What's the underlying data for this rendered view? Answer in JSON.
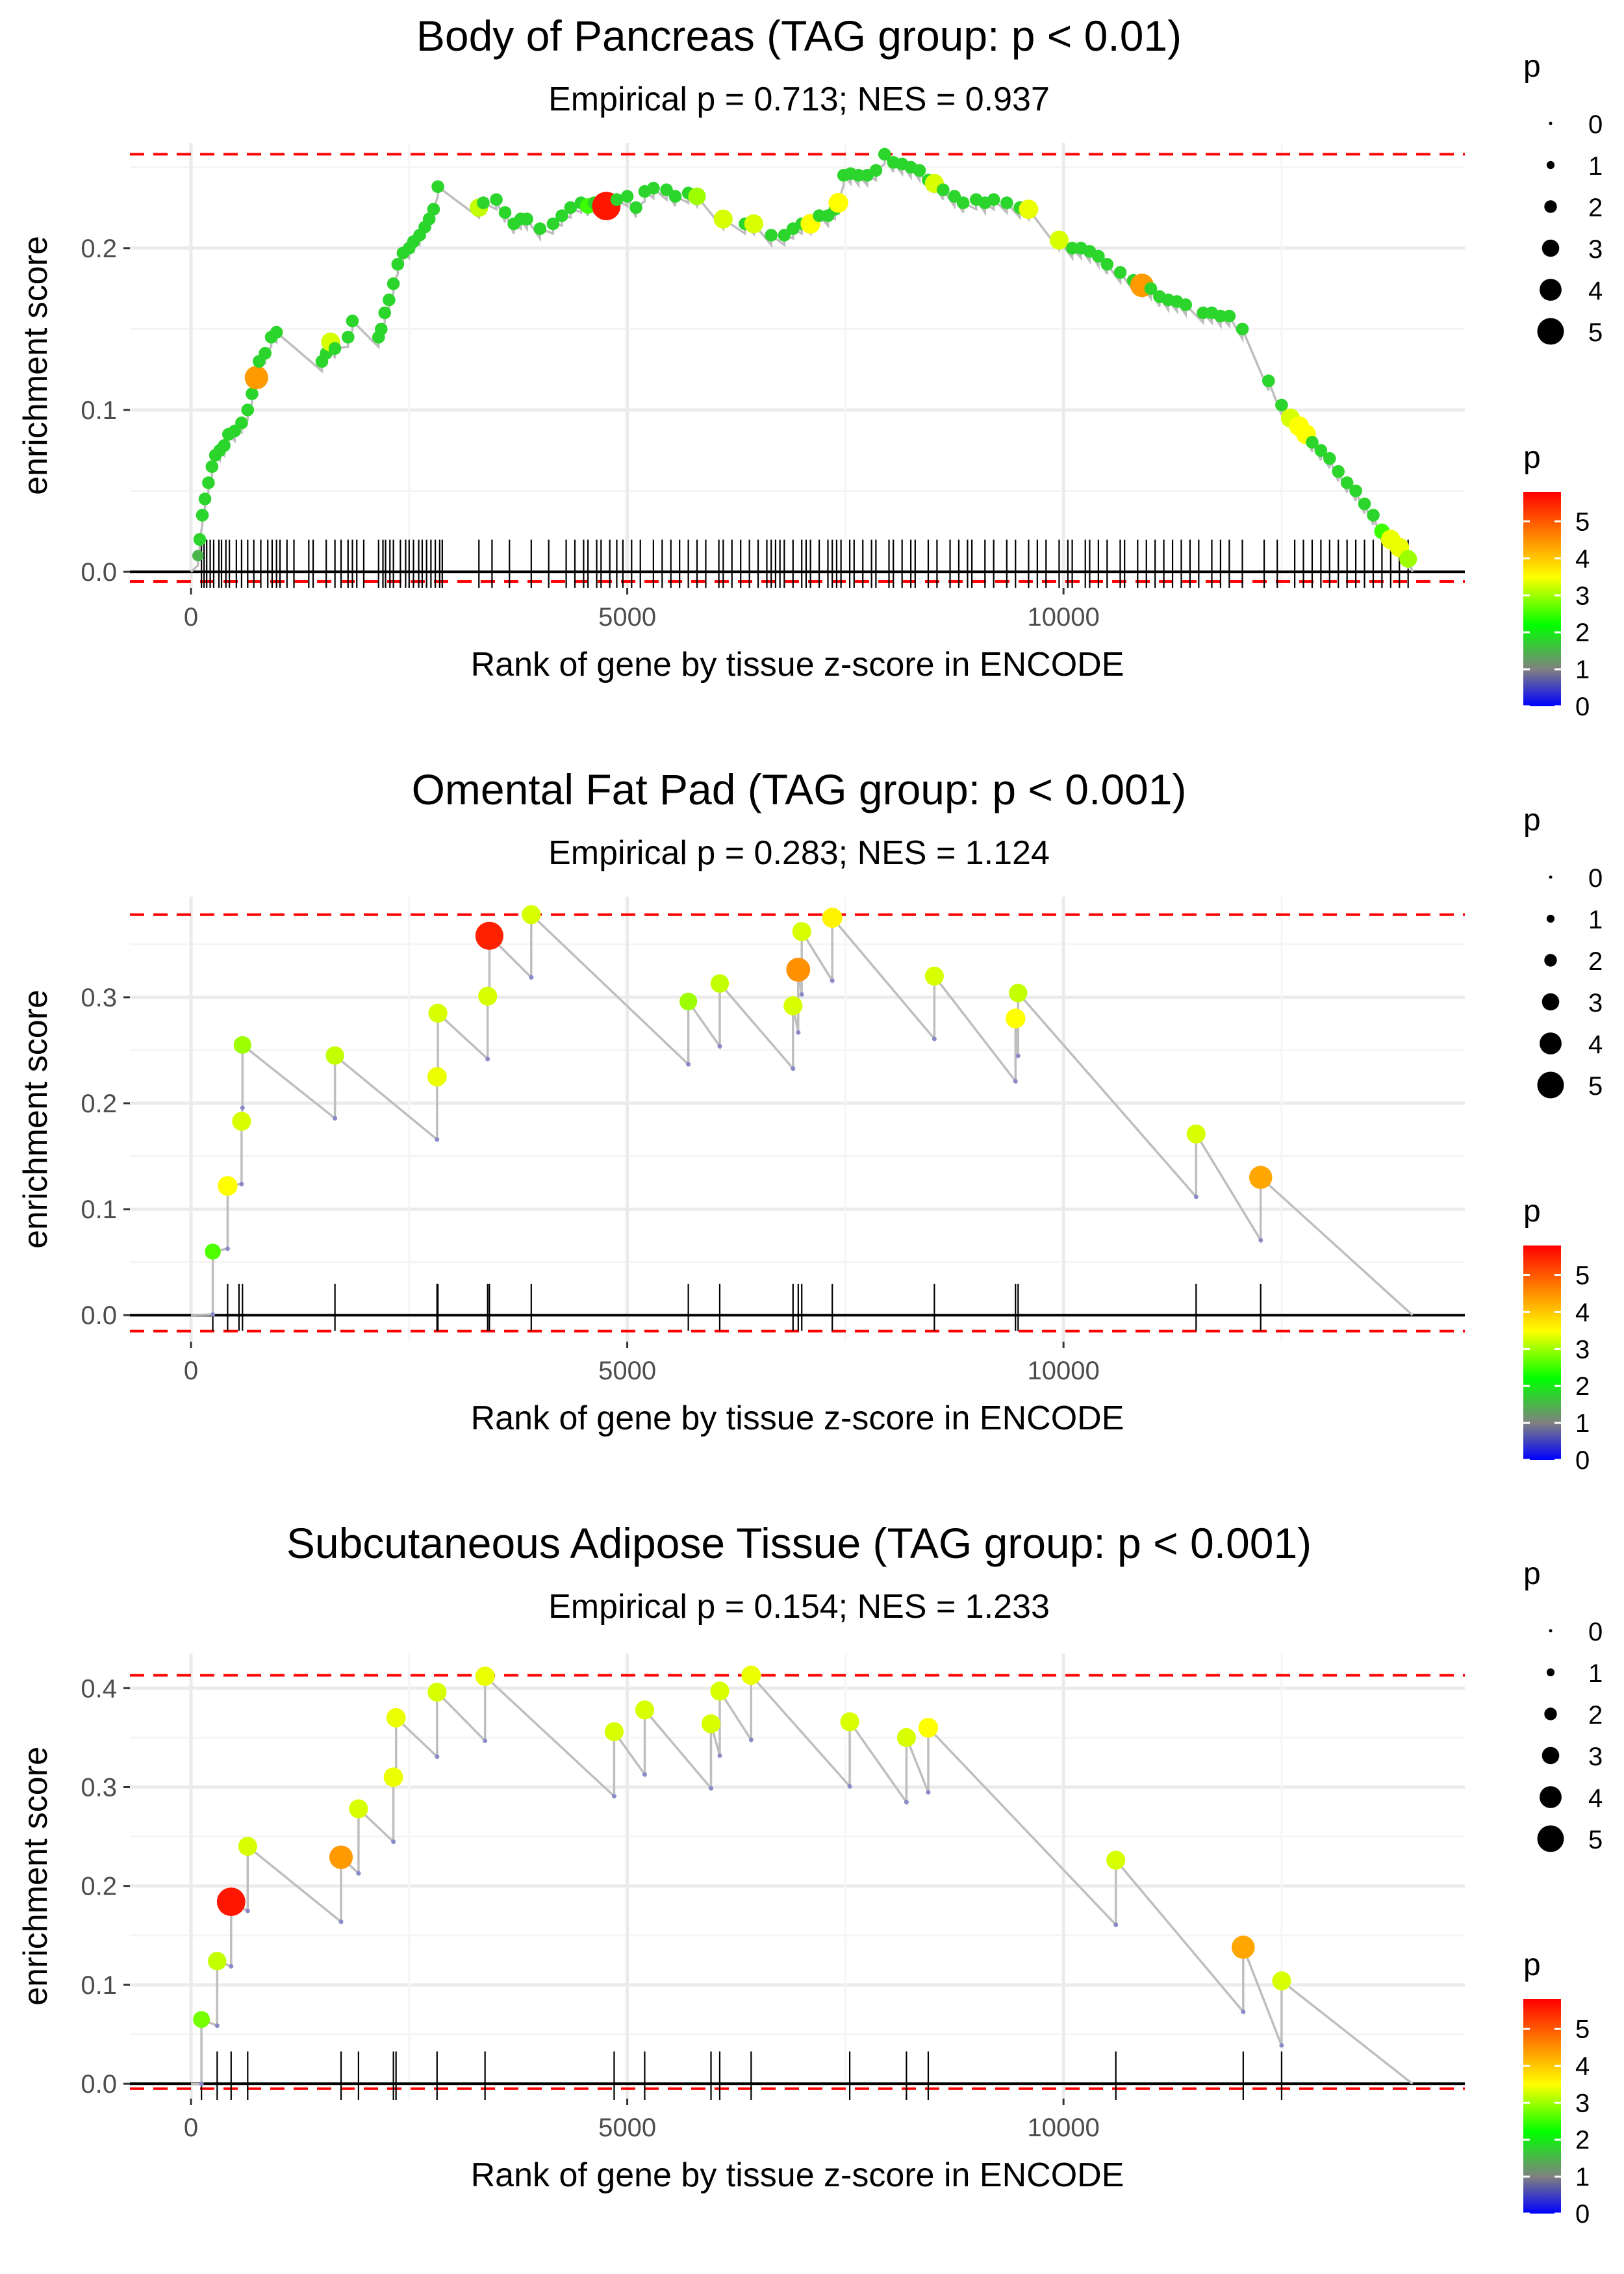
{
  "chart_data": [
    {
      "type": "line",
      "title": "Body of Pancreas (TAG group: p < 0.01)",
      "subtitle": "Empirical p = 0.713; NES = 0.937",
      "xlabel": "Rank of gene by tissue z-score in ENCODE",
      "ylabel": "enrichment score",
      "xlim": [
        -700,
        14600
      ],
      "ylim": [
        -0.01,
        0.265
      ],
      "xticks": [
        0,
        5000,
        10000
      ],
      "xtick_labels": [
        "0",
        "5000",
        "10000"
      ],
      "yticks": [
        0.0,
        0.1,
        0.2
      ],
      "ytick_labels": [
        "0.0",
        "0.1",
        "0.2"
      ],
      "max_line": 0.258,
      "min_line": -0.006,
      "end_rank": 14000,
      "points": [
        [
          80,
          0.01,
          1.5
        ],
        [
          100,
          0.02,
          1.8
        ],
        [
          130,
          0.035,
          1.8
        ],
        [
          160,
          0.045,
          1.8
        ],
        [
          200,
          0.055,
          1.8
        ],
        [
          240,
          0.065,
          1.8
        ],
        [
          280,
          0.072,
          1.8
        ],
        [
          330,
          0.075,
          1.8
        ],
        [
          380,
          0.078,
          1.8
        ],
        [
          430,
          0.085,
          1.8
        ],
        [
          500,
          0.087,
          1.8
        ],
        [
          580,
          0.092,
          1.8
        ],
        [
          650,
          0.1,
          1.8
        ],
        [
          700,
          0.11,
          1.8
        ],
        [
          750,
          0.12,
          4.4
        ],
        [
          780,
          0.13,
          1.8
        ],
        [
          850,
          0.135,
          1.8
        ],
        [
          920,
          0.145,
          1.8
        ],
        [
          980,
          0.148,
          1.8
        ],
        [
          1500,
          0.13,
          1.8
        ],
        [
          1550,
          0.135,
          1.8
        ],
        [
          1600,
          0.142,
          3.3
        ],
        [
          1650,
          0.138,
          1.8
        ],
        [
          1800,
          0.145,
          1.8
        ],
        [
          1850,
          0.155,
          1.8
        ],
        [
          2150,
          0.145,
          1.8
        ],
        [
          2180,
          0.15,
          1.8
        ],
        [
          2220,
          0.16,
          1.8
        ],
        [
          2270,
          0.168,
          1.8
        ],
        [
          2320,
          0.178,
          1.8
        ],
        [
          2370,
          0.19,
          1.8
        ],
        [
          2430,
          0.197,
          1.8
        ],
        [
          2500,
          0.2,
          1.8
        ],
        [
          2550,
          0.204,
          1.8
        ],
        [
          2620,
          0.208,
          1.8
        ],
        [
          2680,
          0.213,
          1.8
        ],
        [
          2730,
          0.218,
          1.8
        ],
        [
          2780,
          0.224,
          1.8
        ],
        [
          2830,
          0.238,
          1.8
        ],
        [
          3300,
          0.225,
          3.2
        ],
        [
          3350,
          0.228,
          1.8
        ],
        [
          3500,
          0.23,
          1.8
        ],
        [
          3600,
          0.222,
          1.8
        ],
        [
          3700,
          0.215,
          1.8
        ],
        [
          3780,
          0.218,
          1.8
        ],
        [
          3850,
          0.218,
          1.8
        ],
        [
          4000,
          0.212,
          1.8
        ],
        [
          4150,
          0.215,
          1.8
        ],
        [
          4250,
          0.22,
          1.8
        ],
        [
          4350,
          0.225,
          1.8
        ],
        [
          4470,
          0.228,
          1.8
        ],
        [
          4550,
          0.226,
          2.5
        ],
        [
          4620,
          0.228,
          1.8
        ],
        [
          4700,
          0.228,
          1.8
        ],
        [
          4760,
          0.226,
          5.6
        ],
        [
          4880,
          0.23,
          1.8
        ],
        [
          5000,
          0.232,
          1.8
        ],
        [
          5100,
          0.225,
          1.8
        ],
        [
          5200,
          0.235,
          1.8
        ],
        [
          5300,
          0.237,
          1.8
        ],
        [
          5450,
          0.236,
          1.8
        ],
        [
          5550,
          0.232,
          1.8
        ],
        [
          5700,
          0.234,
          1.8
        ],
        [
          5800,
          0.232,
          3.0
        ],
        [
          6100,
          0.218,
          3.3
        ],
        [
          6350,
          0.215,
          1.8
        ],
        [
          6450,
          0.215,
          3.3
        ],
        [
          6650,
          0.208,
          1.8
        ],
        [
          6800,
          0.208,
          1.8
        ],
        [
          6900,
          0.212,
          1.8
        ],
        [
          7000,
          0.215,
          1.8
        ],
        [
          7100,
          0.215,
          3.5
        ],
        [
          7200,
          0.22,
          1.8
        ],
        [
          7300,
          0.22,
          1.8
        ],
        [
          7380,
          0.224,
          1.8
        ],
        [
          7420,
          0.228,
          3.5
        ],
        [
          7480,
          0.245,
          1.8
        ],
        [
          7560,
          0.246,
          1.8
        ],
        [
          7650,
          0.245,
          1.8
        ],
        [
          7750,
          0.245,
          1.8
        ],
        [
          7850,
          0.248,
          1.8
        ],
        [
          7950,
          0.258,
          1.8
        ],
        [
          8050,
          0.253,
          1.8
        ],
        [
          8150,
          0.252,
          1.8
        ],
        [
          8250,
          0.25,
          1.8
        ],
        [
          8350,
          0.248,
          1.8
        ],
        [
          8450,
          0.242,
          1.8
        ],
        [
          8520,
          0.24,
          3.3
        ],
        [
          8620,
          0.236,
          1.8
        ],
        [
          8750,
          0.232,
          1.8
        ],
        [
          8850,
          0.228,
          1.8
        ],
        [
          9000,
          0.23,
          1.8
        ],
        [
          9100,
          0.228,
          1.8
        ],
        [
          9200,
          0.23,
          1.8
        ],
        [
          9350,
          0.228,
          1.8
        ],
        [
          9500,
          0.225,
          1.8
        ],
        [
          9600,
          0.224,
          3.4
        ],
        [
          9950,
          0.205,
          3.3
        ],
        [
          10100,
          0.2,
          1.8
        ],
        [
          10200,
          0.2,
          1.8
        ],
        [
          10300,
          0.198,
          1.8
        ],
        [
          10400,
          0.195,
          1.8
        ],
        [
          10500,
          0.19,
          1.8
        ],
        [
          10650,
          0.185,
          1.8
        ],
        [
          10800,
          0.18,
          1.8
        ],
        [
          10900,
          0.177,
          4.4
        ],
        [
          11000,
          0.175,
          1.8
        ],
        [
          11100,
          0.17,
          1.8
        ],
        [
          11200,
          0.168,
          1.8
        ],
        [
          11300,
          0.167,
          1.8
        ],
        [
          11400,
          0.165,
          1.8
        ],
        [
          11600,
          0.16,
          1.8
        ],
        [
          11700,
          0.16,
          1.8
        ],
        [
          11800,
          0.158,
          1.8
        ],
        [
          11900,
          0.158,
          1.8
        ],
        [
          12050,
          0.15,
          1.8
        ],
        [
          12350,
          0.118,
          1.8
        ],
        [
          12500,
          0.103,
          1.8
        ],
        [
          12600,
          0.095,
          3.3
        ],
        [
          12700,
          0.09,
          3.5
        ],
        [
          12780,
          0.085,
          3.5
        ],
        [
          12850,
          0.08,
          1.8
        ],
        [
          12950,
          0.075,
          1.8
        ],
        [
          13050,
          0.07,
          1.8
        ],
        [
          13150,
          0.062,
          1.8
        ],
        [
          13250,
          0.055,
          1.8
        ],
        [
          13350,
          0.05,
          1.8
        ],
        [
          13450,
          0.042,
          1.8
        ],
        [
          13550,
          0.035,
          1.8
        ],
        [
          13650,
          0.025,
          2.5
        ],
        [
          13750,
          0.02,
          3.4
        ],
        [
          13850,
          0.015,
          3.4
        ],
        [
          13950,
          0.008,
          3.0
        ]
      ],
      "rug": [
        120,
        150,
        180,
        220,
        260,
        320,
        350,
        400,
        440,
        520,
        580,
        650,
        720,
        800,
        880,
        930,
        980,
        1020,
        1100,
        1180,
        1350,
        1400,
        1550,
        1650,
        1720,
        1800,
        1850,
        1900,
        1980,
        2150,
        2200,
        2230,
        2280,
        2320,
        2400,
        2460,
        2500,
        2550,
        2610,
        2650,
        2700,
        2750,
        2800,
        2850,
        2880,
        3300,
        3450,
        3650,
        3900,
        4100,
        4300,
        4400,
        4500,
        4550,
        4650,
        4700,
        4800,
        4880,
        4950,
        5050,
        5150,
        5300,
        5400,
        5500,
        5600,
        5700,
        5800,
        5900,
        6050,
        6100,
        6200,
        6300,
        6400,
        6500,
        6600,
        6650,
        6700,
        6750,
        6800,
        6900,
        7000,
        7050,
        7100,
        7200,
        7300,
        7350,
        7400,
        7450,
        7550,
        7600,
        7700,
        7800,
        7850,
        8000,
        8050,
        8150,
        8250,
        8300,
        8450,
        8550,
        8700,
        8800,
        8900,
        8950,
        9100,
        9200,
        9350,
        9450,
        9600,
        9700,
        9800,
        9950,
        10050,
        10100,
        10250,
        10300,
        10400,
        10500,
        10650,
        10700,
        10850,
        10950,
        11050,
        11150,
        11250,
        11350,
        11450,
        11550,
        11700,
        11800,
        11900,
        12050,
        12300,
        12450,
        12650,
        12750,
        12850,
        12950,
        13050,
        13150,
        13250,
        13350,
        13450,
        13550,
        13650,
        13750,
        13850,
        13950
      ]
    },
    {
      "type": "line",
      "title": "Omental Fat Pad (TAG group: p < 0.001)",
      "subtitle": "Empirical p = 0.283; NES = 1.124",
      "xlabel": "Rank of gene by tissue z-score in ENCODE",
      "ylabel": "enrichment score",
      "xlim": [
        -700,
        14600
      ],
      "ylim": [
        -0.025,
        0.395
      ],
      "xticks": [
        0,
        5000,
        10000
      ],
      "xtick_labels": [
        "0",
        "5000",
        "10000"
      ],
      "yticks": [
        0.0,
        0.1,
        0.2,
        0.3
      ],
      "ytick_labels": [
        "0.0",
        "0.1",
        "0.2",
        "0.3"
      ],
      "max_line": 0.378,
      "min_line": -0.015,
      "end_rank": 14000,
      "points": [
        [
          250,
          0.06,
          2.6
        ],
        [
          420,
          0.122,
          3.5
        ],
        [
          580,
          0.183,
          3.3
        ],
        [
          590,
          0.255,
          3.0
        ],
        [
          1650,
          0.245,
          3.2
        ],
        [
          2820,
          0.225,
          3.4
        ],
        [
          2830,
          0.285,
          3.3
        ],
        [
          3400,
          0.301,
          3.3
        ],
        [
          3420,
          0.358,
          5.5
        ],
        [
          3900,
          0.378,
          3.3
        ],
        [
          5700,
          0.296,
          3.0
        ],
        [
          6060,
          0.313,
          3.2
        ],
        [
          6900,
          0.292,
          3.3
        ],
        [
          6960,
          0.326,
          4.5
        ],
        [
          7000,
          0.362,
          3.3
        ],
        [
          7350,
          0.375,
          3.6
        ],
        [
          8520,
          0.32,
          3.3
        ],
        [
          9450,
          0.28,
          3.5
        ],
        [
          9480,
          0.304,
          3.2
        ],
        [
          11520,
          0.171,
          3.3
        ],
        [
          12260,
          0.13,
          4.3
        ]
      ],
      "rug": [
        250,
        420,
        550,
        590,
        1650,
        2820,
        2830,
        3400,
        3420,
        3900,
        5700,
        6060,
        6900,
        6960,
        7000,
        7350,
        8520,
        9450,
        9480,
        11520,
        12260
      ]
    },
    {
      "type": "line",
      "title": "Subcutaneous Adipose Tissue (TAG group: p < 0.001)",
      "subtitle": "Empirical p = 0.154; NES = 1.233",
      "xlabel": "Rank of gene by tissue z-score in ENCODE",
      "ylabel": "enrichment score",
      "xlim": [
        -700,
        14600
      ],
      "ylim": [
        -0.015,
        0.435
      ],
      "xticks": [
        0,
        5000,
        10000
      ],
      "xtick_labels": [
        "0",
        "5000",
        "10000"
      ],
      "yticks": [
        0.0,
        0.1,
        0.2,
        0.3,
        0.4
      ],
      "ytick_labels": [
        "0.0",
        "0.1",
        "0.2",
        "0.3",
        "0.4"
      ],
      "max_line": 0.413,
      "min_line": -0.005,
      "end_rank": 14000,
      "points": [
        [
          120,
          0.065,
          2.8
        ],
        [
          300,
          0.124,
          3.2
        ],
        [
          460,
          0.184,
          5.6
        ],
        [
          650,
          0.24,
          3.3
        ],
        [
          1720,
          0.229,
          4.4
        ],
        [
          1920,
          0.278,
          3.3
        ],
        [
          2320,
          0.31,
          3.4
        ],
        [
          2350,
          0.37,
          3.4
        ],
        [
          2820,
          0.396,
          3.3
        ],
        [
          3370,
          0.412,
          3.4
        ],
        [
          4850,
          0.356,
          3.3
        ],
        [
          5200,
          0.378,
          3.3
        ],
        [
          5960,
          0.364,
          3.3
        ],
        [
          6060,
          0.397,
          3.3
        ],
        [
          6420,
          0.413,
          3.4
        ],
        [
          7550,
          0.366,
          3.3
        ],
        [
          8200,
          0.35,
          3.3
        ],
        [
          8450,
          0.36,
          3.5
        ],
        [
          10600,
          0.226,
          3.3
        ],
        [
          12060,
          0.138,
          4.3
        ],
        [
          12500,
          0.104,
          3.3
        ]
      ],
      "rug": [
        120,
        300,
        460,
        650,
        1720,
        1920,
        2320,
        2350,
        2820,
        3370,
        4850,
        5200,
        5960,
        6060,
        6420,
        7550,
        8200,
        8450,
        10600,
        12060,
        12500
      ]
    }
  ],
  "legend": {
    "size_title": "p",
    "size_labels": [
      "0",
      "1",
      "2",
      "3",
      "4",
      "5"
    ],
    "color_title": "p",
    "color_labels": [
      "0",
      "1",
      "2",
      "3",
      "4",
      "5"
    ],
    "color_range": [
      0,
      5.8
    ],
    "colors": [
      "#0000ff",
      "#808080",
      "#00ff00",
      "#ffff00",
      "#ff0000"
    ]
  },
  "colors": {
    "threshold_line": "#ff0000",
    "path_line": "#bebebe",
    "grid": "#ebebeb",
    "axis_zero": "#000000",
    "text": "#000000",
    "tick_text": "#4d4d4d"
  }
}
